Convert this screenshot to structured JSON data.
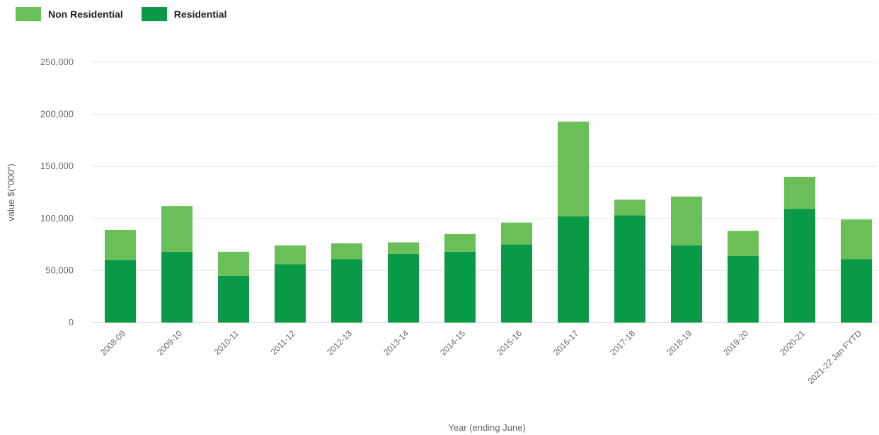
{
  "chart_data": {
    "type": "bar",
    "stacked": true,
    "categories": [
      "2008-09",
      "2009-10",
      "2010-11",
      "2011-12",
      "2012-13",
      "2013-14",
      "2014-15",
      "2015-16",
      "2016-17",
      "2017-18",
      "2018-19",
      "2019-20",
      "2020-21",
      "2021-22 Jan FYTD"
    ],
    "series": [
      {
        "name": "Residential",
        "color": "#0a9a47",
        "values": [
          60000,
          68000,
          45000,
          56000,
          61000,
          66000,
          68000,
          75000,
          102000,
          103000,
          74000,
          64000,
          109000,
          61000
        ]
      },
      {
        "name": "Non Residential",
        "color": "#6abf59",
        "values": [
          29000,
          44000,
          23000,
          18000,
          15000,
          11000,
          17000,
          21000,
          91000,
          15000,
          47000,
          24000,
          31000,
          38000
        ]
      }
    ],
    "xlabel": "Year (ending June)",
    "ylabel": "value $(\"000\")",
    "ylim": [
      0,
      250000
    ],
    "yticks": [
      0,
      50000,
      100000,
      150000,
      200000,
      250000
    ],
    "ytick_labels": [
      "0",
      "50,000",
      "100,000",
      "150,000",
      "200,000",
      "250,000"
    ],
    "grid": true,
    "legend_position": "top-left",
    "legend": [
      "Non Residential",
      "Residential"
    ]
  }
}
